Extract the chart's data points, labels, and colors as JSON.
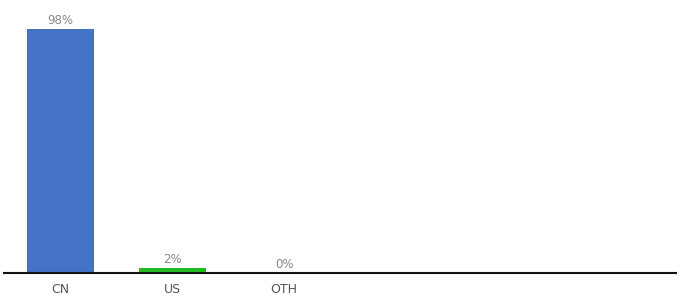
{
  "categories": [
    "CN",
    "US",
    "OTH"
  ],
  "values": [
    98,
    2,
    0
  ],
  "labels": [
    "98%",
    "2%",
    "0%"
  ],
  "bar_colors": [
    "#4472c4",
    "#22bb22",
    "#4472c4"
  ],
  "background_color": "#ffffff",
  "ylim": [
    0,
    108
  ],
  "bar_width": 0.6,
  "label_fontsize": 8.5,
  "tick_fontsize": 9,
  "label_color": "#888888",
  "tick_color": "#555555",
  "spine_color": "#111111"
}
